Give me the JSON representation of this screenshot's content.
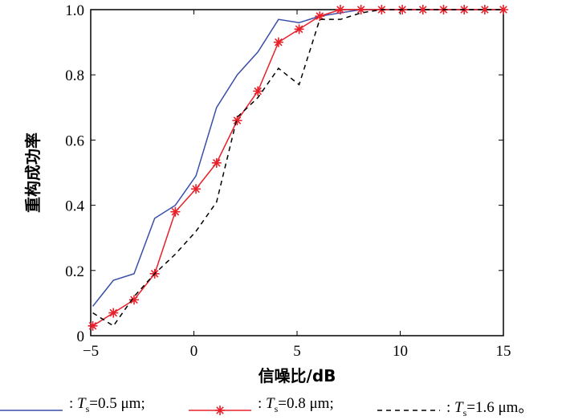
{
  "chart_data": {
    "type": "line",
    "xlabel": "信噪比/dB",
    "ylabel": "重构成功率",
    "xlim": [
      -5,
      15
    ],
    "ylim": [
      0,
      1
    ],
    "xticks": [
      "−5",
      "0",
      "5",
      "10",
      "15"
    ],
    "yticks": [
      "0",
      "0.2",
      "0.4",
      "0.6",
      "0.8",
      "1.0"
    ],
    "x": [
      -4.9,
      -3.9,
      -2.9,
      -1.9,
      -0.9,
      0.1,
      1.1,
      2.1,
      3.1,
      4.1,
      5.1,
      6.1,
      7.1,
      8.1,
      9.1,
      10.1,
      11.1,
      12.1,
      13.1,
      14.1,
      15.0
    ],
    "series": [
      {
        "name": "Ts=0.5 μm",
        "color": "#3a4fa8",
        "style": "solid",
        "marker": "none",
        "legend_prefix": ": ",
        "legend_var": "T",
        "legend_sub": "s",
        "legend_suffix": "=0.5 μm;",
        "values": [
          0.09,
          0.17,
          0.19,
          0.36,
          0.4,
          0.49,
          0.7,
          0.8,
          0.87,
          0.97,
          0.96,
          0.98,
          0.99,
          1,
          1,
          1,
          1,
          1,
          1,
          1,
          1
        ]
      },
      {
        "name": "Ts=0.8 μm",
        "color": "#e8202a",
        "style": "solid",
        "marker": "star",
        "legend_prefix": ": ",
        "legend_var": "T",
        "legend_sub": "s",
        "legend_suffix": "=0.8 μm;",
        "values": [
          0.03,
          0.07,
          0.11,
          0.19,
          0.38,
          0.45,
          0.53,
          0.66,
          0.75,
          0.9,
          0.94,
          0.98,
          1,
          1,
          1,
          1,
          1,
          1,
          1,
          1,
          1
        ]
      },
      {
        "name": "Ts=1.6 μm",
        "color": "#000000",
        "style": "dashed",
        "marker": "none",
        "legend_prefix": ": ",
        "legend_var": "T",
        "legend_sub": "s",
        "legend_suffix": "=1.6 μm。",
        "values": [
          0.07,
          0.03,
          0.12,
          0.19,
          0.25,
          0.32,
          0.41,
          0.67,
          0.73,
          0.82,
          0.77,
          0.97,
          0.97,
          0.99,
          1,
          1,
          1,
          1,
          1,
          1,
          1
        ]
      }
    ]
  }
}
